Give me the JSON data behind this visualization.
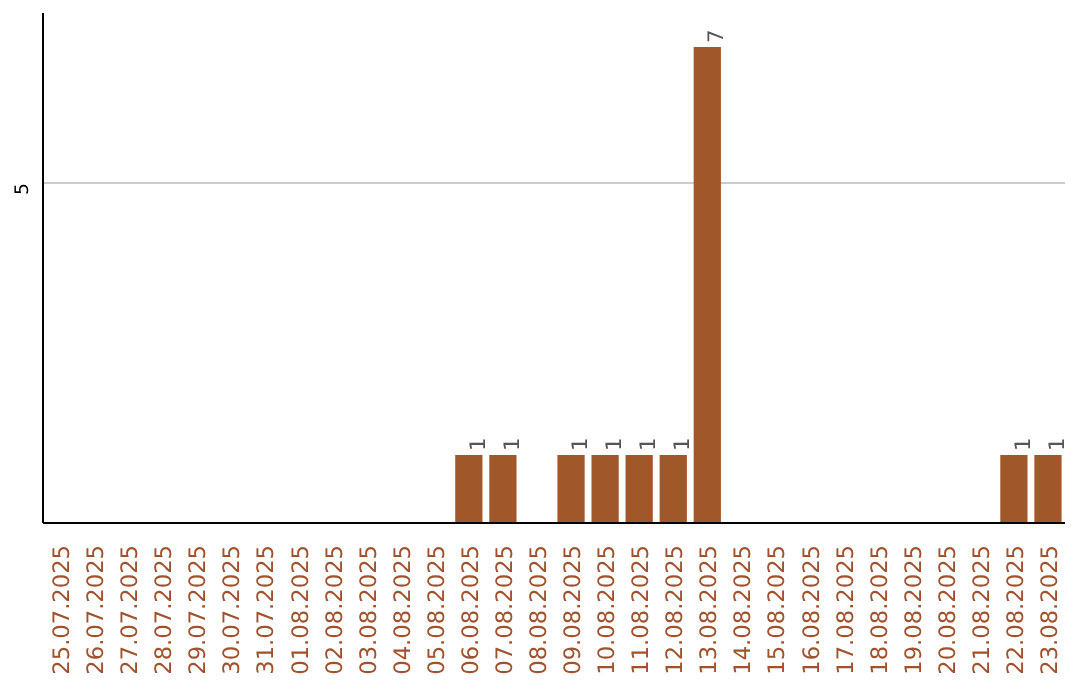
{
  "chart_data": {
    "type": "bar",
    "categories": [
      "25.07.2025",
      "26.07.2025",
      "27.07.2025",
      "28.07.2025",
      "29.07.2025",
      "30.07.2025",
      "31.07.2025",
      "01.08.2025",
      "02.08.2025",
      "03.08.2025",
      "04.08.2025",
      "05.08.2025",
      "06.08.2025",
      "07.08.2025",
      "08.08.2025",
      "09.08.2025",
      "10.08.2025",
      "11.08.2025",
      "12.08.2025",
      "13.08.2025",
      "14.08.2025",
      "15.08.2025",
      "16.08.2025",
      "17.08.2025",
      "18.08.2025",
      "19.08.2025",
      "20.08.2025",
      "21.08.2025",
      "22.08.2025",
      "23.08.2025"
    ],
    "values": [
      null,
      null,
      null,
      null,
      null,
      null,
      null,
      null,
      null,
      null,
      null,
      null,
      1,
      1,
      null,
      1,
      1,
      1,
      1,
      7,
      null,
      null,
      null,
      null,
      null,
      null,
      null,
      null,
      1,
      1
    ],
    "data_labels": true,
    "color": "#a0582a",
    "ylim": [
      0,
      7.5
    ],
    "yticks": [
      5
    ],
    "grid": "y"
  }
}
